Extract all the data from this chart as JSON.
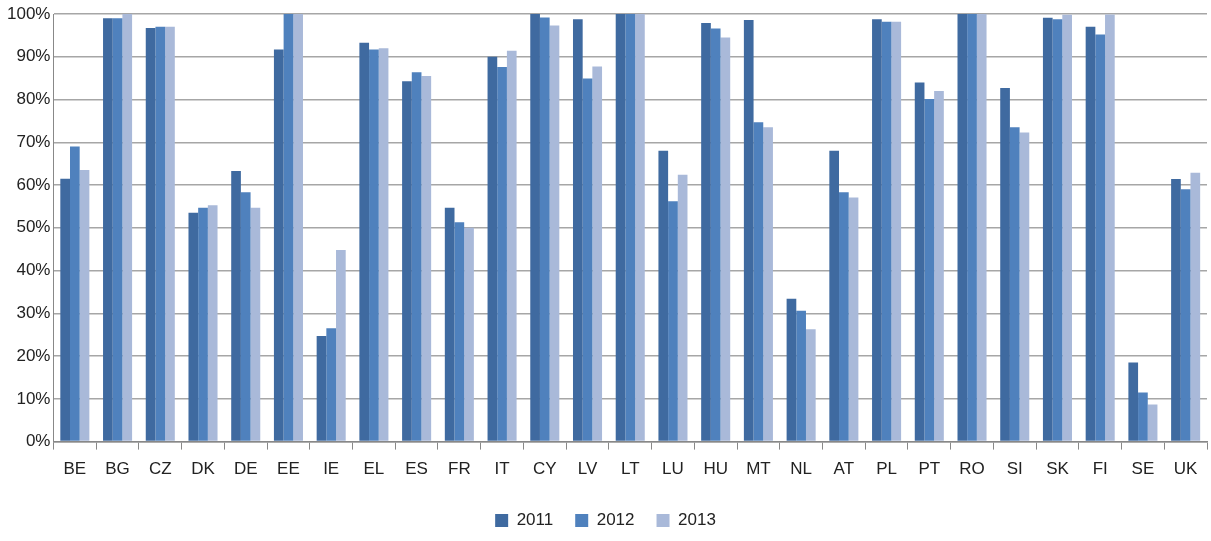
{
  "chart_data": {
    "type": "bar",
    "categories": [
      "BE",
      "BG",
      "CZ",
      "DK",
      "DE",
      "EE",
      "IE",
      "EL",
      "ES",
      "FR",
      "IT",
      "CY",
      "LV",
      "LT",
      "LU",
      "HU",
      "MT",
      "NL",
      "AT",
      "PL",
      "PT",
      "RO",
      "SI",
      "SK",
      "FI",
      "SE",
      "UK"
    ],
    "series": [
      {
        "name": "2011",
        "color": "#3f6aa0",
        "values": [
          61.5,
          99,
          96.7,
          53.5,
          63.3,
          91.7,
          24.7,
          93.3,
          84.3,
          54.7,
          90,
          100,
          98.8,
          100,
          68,
          97.9,
          98.6,
          33.4,
          68,
          98.8,
          84,
          100,
          82.7,
          99.1,
          97,
          18.5,
          61.4
        ]
      },
      {
        "name": "2012",
        "color": "#4f81bd",
        "values": [
          69,
          99,
          97,
          54.7,
          58.3,
          100,
          26.5,
          91.7,
          86.4,
          51.3,
          87.6,
          99.2,
          84.9,
          100,
          56.2,
          96.6,
          74.7,
          30.6,
          58.3,
          98.2,
          80.1,
          100,
          73.5,
          98.8,
          95.2,
          11.5,
          59
        ]
      },
      {
        "name": "2013",
        "color": "#a9b9d9",
        "values": [
          63.5,
          100,
          97,
          55.3,
          54.7,
          100,
          44.8,
          92,
          85.5,
          50,
          91.4,
          97.3,
          87.7,
          100,
          62.4,
          94.5,
          73.5,
          26.3,
          57.1,
          98.2,
          82,
          100,
          72.3,
          99.8,
          99.9,
          8.7,
          62.9
        ]
      }
    ],
    "ylim": [
      0,
      100
    ],
    "yticks": [
      {
        "value": 0,
        "label": "0%"
      },
      {
        "value": 10,
        "label": "10%"
      },
      {
        "value": 20,
        "label": "20%"
      },
      {
        "value": 30,
        "label": "30%"
      },
      {
        "value": 40,
        "label": "40%"
      },
      {
        "value": 50,
        "label": "50%"
      },
      {
        "value": 60,
        "label": "60%"
      },
      {
        "value": 70,
        "label": "70%"
      },
      {
        "value": 80,
        "label": "80%"
      },
      {
        "value": 90,
        "label": "90%"
      },
      {
        "value": 100,
        "label": "100%"
      }
    ],
    "grid": "y",
    "legend": "bottom"
  }
}
